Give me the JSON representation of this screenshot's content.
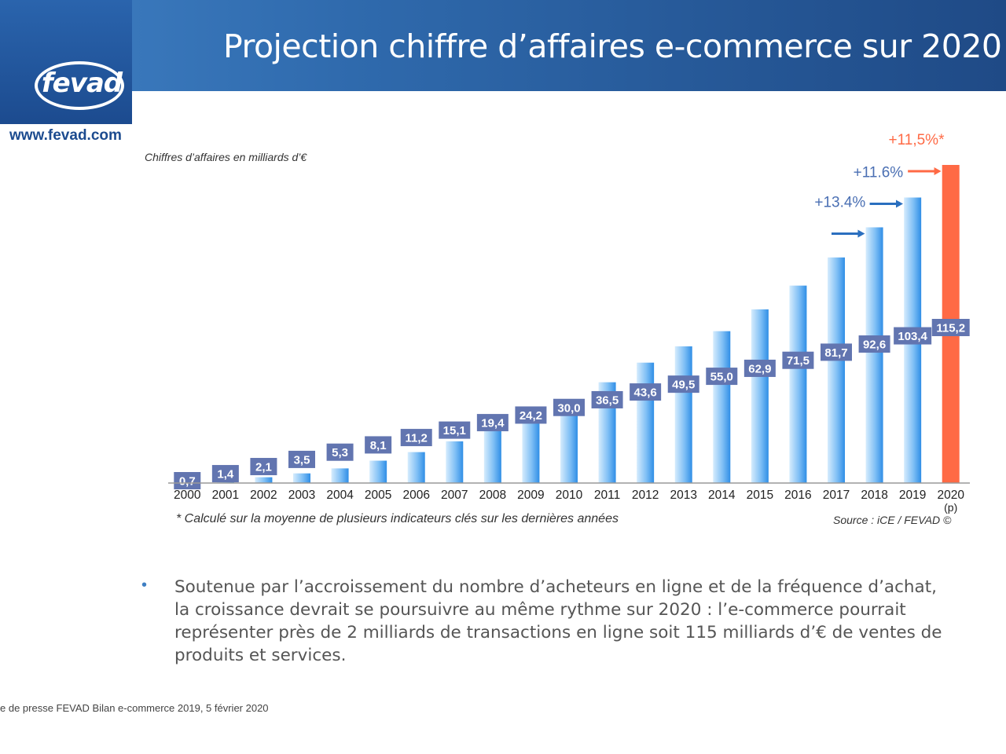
{
  "slide": {
    "title": "Projection chiffre d’affaires e-commerce sur 2020",
    "logo_text": "fevad",
    "website": "www.fevad.com",
    "units_label": "Chiffres d’affaires en milliards d’€",
    "footnote": "* Calculé sur la moyenne de plusieurs indicateurs clés sur les dernières années",
    "source": "Source : iCE / FEVAD ©",
    "bullet": "Soutenue par l’accroissement du nombre d’acheteurs en ligne et de la fréquence d’achat, la croissance devrait se poursuivre au même rythme sur 2020 : l’e-commerce pourrait représenter près de 2 milliards de transactions en ligne soit 115 milliards d’€ de ventes de produits et services.",
    "footer": "e de presse FEVAD Bilan e-commerce 2019,  5 février 2020",
    "colors": {
      "header": "#2f6aad",
      "bar": "#5aa8ee",
      "highlight_bar": "#ff6a45",
      "label_box": "#6275b0",
      "growth_text": "#4a6fb3",
      "arrow": "#2a6fbf"
    }
  },
  "chart_data": {
    "type": "bar",
    "categories": [
      "2000",
      "2001",
      "2002",
      "2003",
      "2004",
      "2005",
      "2006",
      "2007",
      "2008",
      "2009",
      "2010",
      "2011",
      "2012",
      "2013",
      "2014",
      "2015",
      "2016",
      "2017",
      "2018",
      "2019",
      "2020\n(p)"
    ],
    "values": [
      0.7,
      1.4,
      2.1,
      3.5,
      5.3,
      8.1,
      11.2,
      15.1,
      19.4,
      24.2,
      30.0,
      36.5,
      43.6,
      49.5,
      55.0,
      62.9,
      71.5,
      81.7,
      92.6,
      103.4,
      115.2
    ],
    "labels": [
      "0,7",
      "1,4",
      "2,1",
      "3,5",
      "5,3",
      "8,1",
      "11,2",
      "15,1",
      "19,4",
      "24,2",
      "30,0",
      "36,5",
      "43,6",
      "49,5",
      "55,0",
      "62,9",
      "71,5",
      "81,7",
      "92,6",
      "103,4",
      "115,2"
    ],
    "highlight_index": 20,
    "ylim": [
      0,
      115.2
    ],
    "grid": false,
    "annotations": [
      {
        "text": "+13.4%",
        "category_index": 17,
        "color": "#4a6fb3"
      },
      {
        "text": "+11.6%",
        "category_index": 18,
        "color": "#4a6fb3"
      },
      {
        "text": "+11,5%*",
        "category_index": 19,
        "color": "#ff6a45"
      }
    ]
  }
}
